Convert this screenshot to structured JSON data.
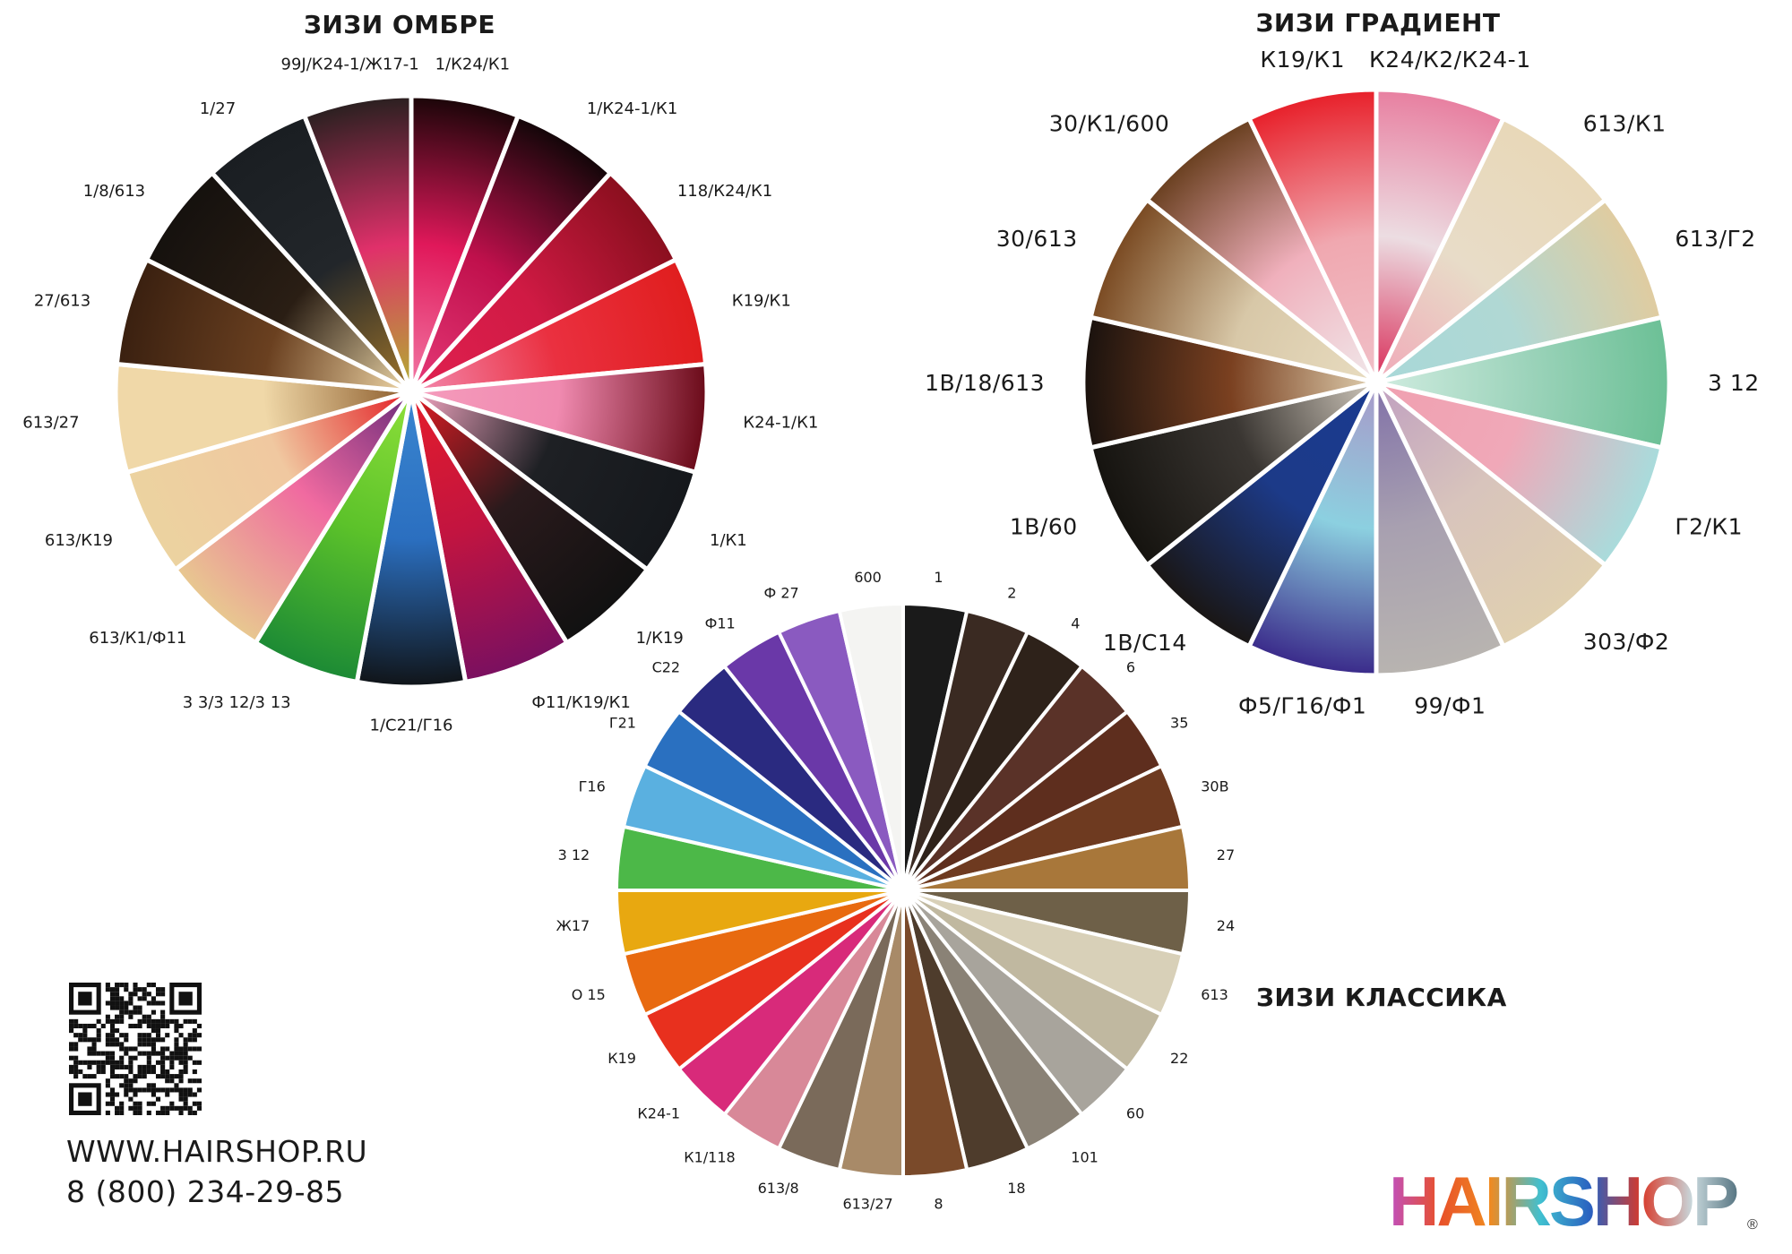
{
  "wheels": [
    {
      "id": "ombre",
      "title": "ЗИЗИ ОМБРЕ",
      "sectors": [
        {
          "label": "1/К24/К1",
          "colors": [
            "#f27aa6",
            "#e0185a",
            "#1a0508"
          ]
        },
        {
          "label": "1/К24-1/К1",
          "colors": [
            "#e63a78",
            "#c0104c",
            "#120608"
          ]
        },
        {
          "label": "118/К24/К1",
          "colors": [
            "#e02050",
            "#d01a44",
            "#8a0f1e"
          ]
        },
        {
          "label": "К19/К1",
          "colors": [
            "#f38ab0",
            "#ea3040",
            "#e01e1e"
          ]
        },
        {
          "label": "К24-1/К1",
          "colors": [
            "#f59cbc",
            "#f08ab0",
            "#6a0a18"
          ]
        },
        {
          "label": "1/К1",
          "colors": [
            "#f7a8c4",
            "#1e2024",
            "#15181c"
          ]
        },
        {
          "label": "1/К19",
          "colors": [
            "#e31b23",
            "#2a1a1c",
            "#111111"
          ]
        },
        {
          "label": "Ф11/К19/К1",
          "colors": [
            "#e51d2a",
            "#c21440",
            "#7a1060"
          ]
        },
        {
          "label": "1/С21/Г16",
          "colors": [
            "#3a86d0",
            "#2b6fc0",
            "#101418"
          ]
        },
        {
          "label": "3 3/3 12/3 13",
          "colors": [
            "#8ee03a",
            "#5cc22a",
            "#1c8a35"
          ]
        },
        {
          "label": "613/К1/Ф11",
          "colors": [
            "#6a2a7a",
            "#f06aa0",
            "#e8c890"
          ]
        },
        {
          "label": "613/К19",
          "colors": [
            "#e31b23",
            "#f0c8a0",
            "#ecd3a0"
          ]
        },
        {
          "label": "613/27",
          "colors": [
            "#8a5a2a",
            "#f0d8a8",
            "#f0d8a8"
          ]
        },
        {
          "label": "27/613",
          "colors": [
            "#f0d8a8",
            "#6a4020",
            "#3a2010"
          ]
        },
        {
          "label": "1/8/613",
          "colors": [
            "#f0d8a8",
            "#2a1e14",
            "#15110e"
          ]
        },
        {
          "label": "1/27",
          "colors": [
            "#a0752a",
            "#22262a",
            "#1a1e22"
          ]
        },
        {
          "label": "99J/К24-1/Ж17-1",
          "colors": [
            "#b0b030",
            "#e0306a",
            "#2a2020"
          ]
        }
      ]
    },
    {
      "id": "gradient",
      "title": "ЗИЗИ ГРАДИЕНТ",
      "sectors": [
        {
          "label": "К24/К2/К24-1",
          "colors": [
            "#d82a56",
            "#ecdde2",
            "#e87fa0"
          ]
        },
        {
          "label": "613/К1",
          "colors": [
            "#f0a8b8",
            "#e8dcc8",
            "#e8d8b8"
          ]
        },
        {
          "label": "613/Г2",
          "colors": [
            "#a8d8d8",
            "#b0d8d4",
            "#e0cca0"
          ]
        },
        {
          "label": "3 12",
          "colors": [
            "#d0ece0",
            "#9ed4bc",
            "#6cc096"
          ]
        },
        {
          "label": "Г2/К1",
          "colors": [
            "#f0a0b0",
            "#f0a8b8",
            "#a8dcdc"
          ]
        },
        {
          "label": "303/Ф2",
          "colors": [
            "#c0a0c0",
            "#d8c4bc",
            "#e0d0b0"
          ]
        },
        {
          "label": "99/Ф1",
          "colors": [
            "#8070a8",
            "#a8a0b0",
            "#b8b4b0"
          ]
        },
        {
          "label": "Ф5/Г16/Ф1",
          "colors": [
            "#a898c8",
            "#8cd0e0",
            "#3a2a8a"
          ]
        },
        {
          "label": "1В/С14",
          "colors": [
            "#1a3a90",
            "#1c3a88",
            "#1a1614"
          ]
        },
        {
          "label": "1В/60",
          "colors": [
            "#d0c8bc",
            "#3a3632",
            "#15130f"
          ]
        },
        {
          "label": "1В/18/613",
          "colors": [
            "#e0d0b0",
            "#7a4020",
            "#1a120e"
          ]
        },
        {
          "label": "30/613",
          "colors": [
            "#e8dcc0",
            "#d8c8a8",
            "#7a4a22"
          ]
        },
        {
          "label": "30/К1/600",
          "colors": [
            "#f0e8ea",
            "#f0b0bc",
            "#6a4020"
          ]
        },
        {
          "label": "К19/К1",
          "colors": [
            "#f0c0c8",
            "#f0a8b0",
            "#e8202a"
          ]
        }
      ]
    },
    {
      "id": "classic",
      "title": "ЗИЗИ КЛАССИКА",
      "sectors": [
        {
          "label": "1",
          "colors": [
            "#1a1a1a"
          ]
        },
        {
          "label": "2",
          "colors": [
            "#3a2a22"
          ]
        },
        {
          "label": "4",
          "colors": [
            "#2e221a"
          ]
        },
        {
          "label": "6",
          "colors": [
            "#5a3228"
          ]
        },
        {
          "label": "35",
          "colors": [
            "#5e2e1e"
          ]
        },
        {
          "label": "30В",
          "colors": [
            "#6e3a20"
          ]
        },
        {
          "label": "27",
          "colors": [
            "#a8773a"
          ]
        },
        {
          "label": "24",
          "colors": [
            "#6e6048"
          ]
        },
        {
          "label": "613",
          "colors": [
            "#d8d0b8"
          ]
        },
        {
          "label": "22",
          "colors": [
            "#c0b8a0"
          ]
        },
        {
          "label": "60",
          "colors": [
            "#a8a49c"
          ]
        },
        {
          "label": "101",
          "colors": [
            "#8a8276"
          ]
        },
        {
          "label": "18",
          "colors": [
            "#4e3c2c"
          ]
        },
        {
          "label": "8",
          "colors": [
            "#7a4a2a"
          ]
        },
        {
          "label": "613/27",
          "colors": [
            "#a88a68"
          ]
        },
        {
          "label": "613/8",
          "colors": [
            "#7a6a5a"
          ]
        },
        {
          "label": "К1/118",
          "colors": [
            "#d88898"
          ]
        },
        {
          "label": "К24-1",
          "colors": [
            "#d82a7a"
          ]
        },
        {
          "label": "К19",
          "colors": [
            "#e8301e"
          ]
        },
        {
          "label": "О 15",
          "colors": [
            "#e86a10"
          ]
        },
        {
          "label": "Ж17",
          "colors": [
            "#e8a810"
          ]
        },
        {
          "label": "3 12",
          "colors": [
            "#4cb848"
          ]
        },
        {
          "label": "Г16",
          "colors": [
            "#5ab0e0"
          ]
        },
        {
          "label": "Г21",
          "colors": [
            "#2a70c0"
          ]
        },
        {
          "label": "С22",
          "colors": [
            "#2a2a80"
          ]
        },
        {
          "label": "Ф11",
          "colors": [
            "#6a38a8"
          ]
        },
        {
          "label": "Ф 27",
          "colors": [
            "#8a5ac0"
          ]
        },
        {
          "label": "600",
          "colors": [
            "#f4f4f2"
          ]
        }
      ]
    }
  ],
  "contact": {
    "website": "WWW.HAIRSHOP.RU",
    "phone": "8 (800) 234-29-85"
  },
  "logo": {
    "text": "HAIRSHOP",
    "registered": "®",
    "colors": [
      "#c050c0",
      "#e8502a",
      "#f08a20",
      "#40c0d0",
      "#2a60c0",
      "#d83a2a",
      "#c8d8dc",
      "#4a6a78"
    ]
  }
}
